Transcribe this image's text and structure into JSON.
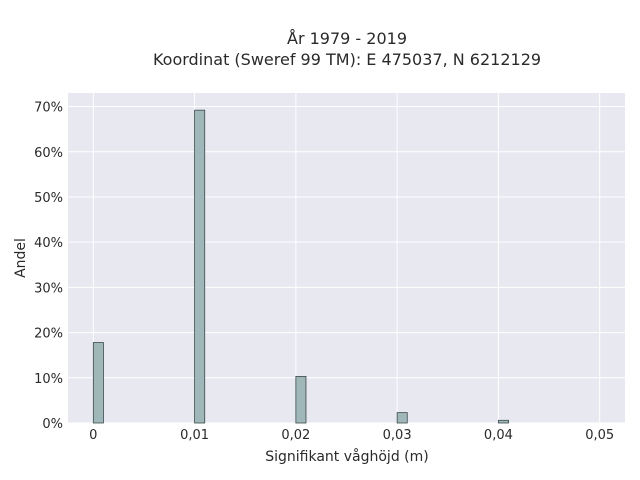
{
  "chart_data": {
    "type": "bar",
    "title_lines": [
      "År 1979 - 2019",
      "Koordinat (Sweref 99 TM): E 475037, N 6212129"
    ],
    "xlabel": "Signifikant våghöjd (m)",
    "ylabel": "Andel",
    "x_ticks": [
      0,
      0.01,
      0.02,
      0.03,
      0.04,
      0.05
    ],
    "x_tick_labels": [
      "0",
      "0,01",
      "0,02",
      "0,03",
      "0,04",
      "0,05"
    ],
    "y_ticks": [
      0,
      0.1,
      0.2,
      0.3,
      0.4,
      0.5,
      0.6,
      0.7
    ],
    "y_tick_labels": [
      "0%",
      "10%",
      "20%",
      "30%",
      "40%",
      "50%",
      "60%",
      "70%"
    ],
    "xlim": [
      -0.0025,
      0.0525
    ],
    "ylim": [
      0,
      0.73
    ],
    "bin_width": 0.001,
    "x": [
      0,
      0.01,
      0.02,
      0.03,
      0.04
    ],
    "values": [
      0.178,
      0.692,
      0.103,
      0.023,
      0.006
    ],
    "grid": true,
    "colors": {
      "bar_fill": "#9fb7b9",
      "bar_stroke": "#3b4a4a",
      "plot_bg": "#e8e8f0",
      "grid": "#ffffff"
    }
  }
}
